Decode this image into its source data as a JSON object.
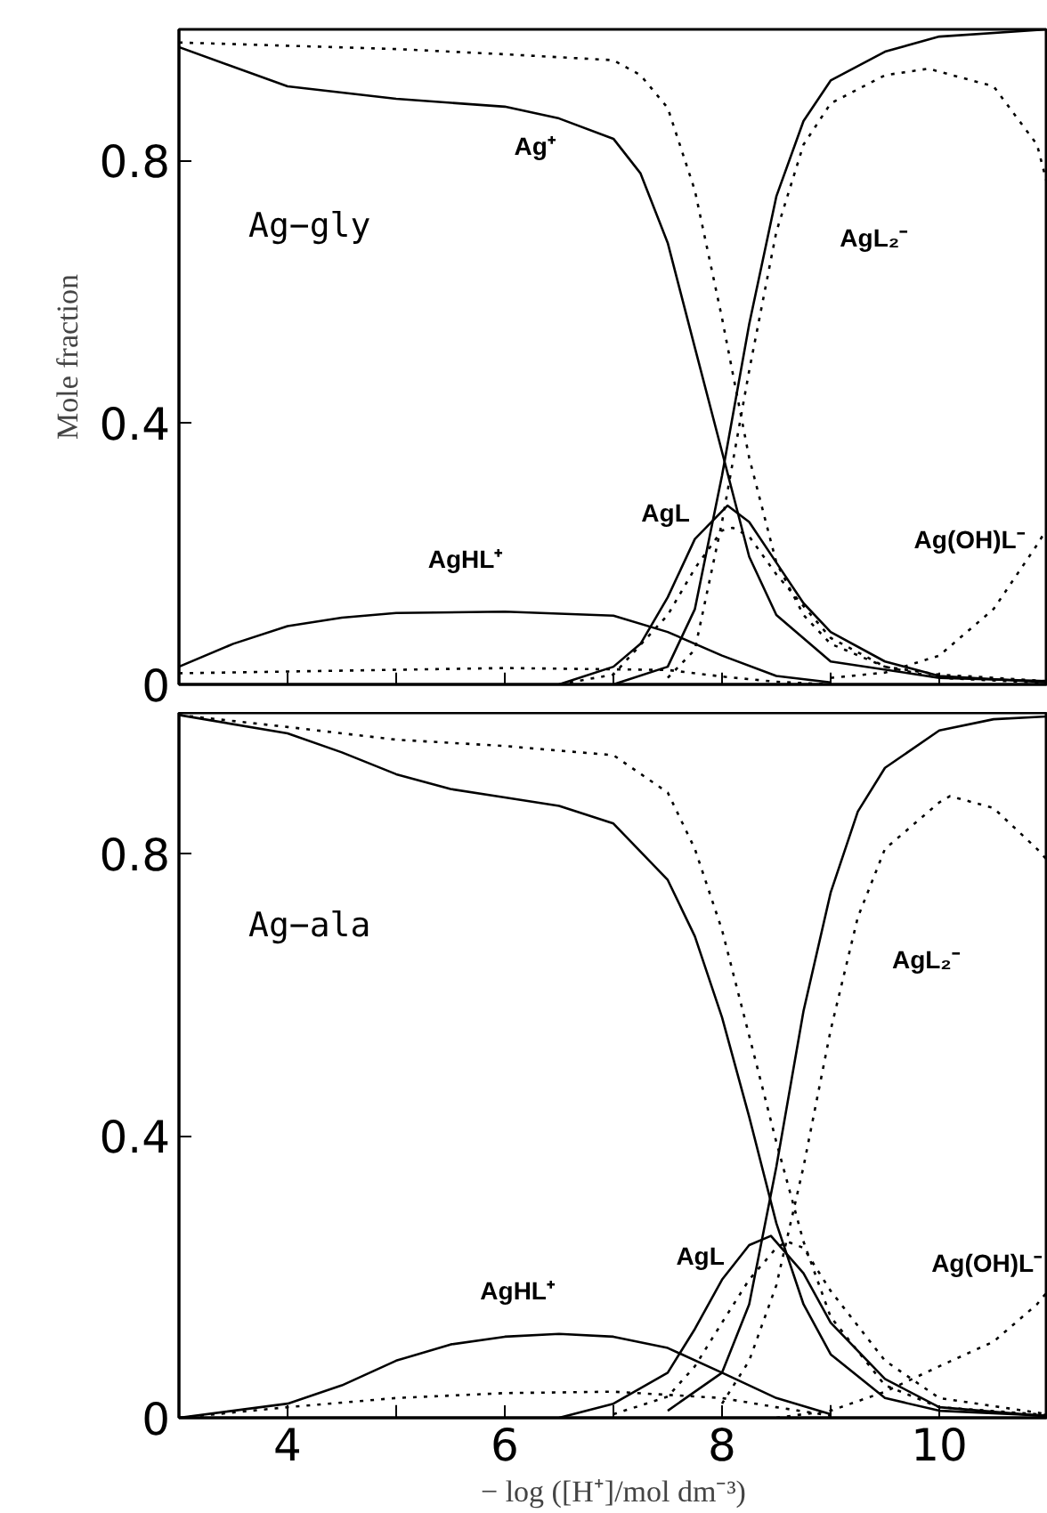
{
  "chart_data": [
    {
      "type": "line",
      "title": "Ag−gly",
      "ylabel": "Mole fraction",
      "xlim": [
        3,
        11
      ],
      "ylim": [
        0,
        1.0
      ],
      "xticks": [
        {
          "value": 4,
          "label": null
        },
        {
          "value": 5,
          "label": null
        },
        {
          "value": 6,
          "label": null
        },
        {
          "value": 7,
          "label": null
        },
        {
          "value": 8,
          "label": null
        },
        {
          "value": 9,
          "label": null
        },
        {
          "value": 10,
          "label": null
        }
      ],
      "yticks": [
        0,
        0.4,
        0.8
      ],
      "tick_labels": "y",
      "series": [
        {
          "color": "#000000",
          "line_style": "solid",
          "x": [
            3,
            4,
            5,
            6,
            6.5,
            7,
            7.25,
            7.5,
            7.75,
            8,
            8.25,
            8.5,
            9,
            10,
            11
          ],
          "values": [
            0.973,
            0.913,
            0.894,
            0.882,
            0.864,
            0.833,
            0.78,
            0.674,
            0.514,
            0.355,
            0.195,
            0.106,
            0.035,
            0.01,
            0.005
          ]
        },
        {
          "color": "#000000",
          "line_style": "dotted",
          "x": [
            3,
            5,
            6,
            7,
            7.25,
            7.5,
            7.75,
            8,
            8.25,
            8.5,
            8.75,
            9,
            9.5,
            10,
            11
          ],
          "values": [
            0.98,
            0.97,
            0.962,
            0.953,
            0.93,
            0.88,
            0.754,
            0.559,
            0.346,
            0.186,
            0.106,
            0.062,
            0.027,
            0.015,
            0.005
          ]
        },
        {
          "color": "#000000",
          "line_style": "solid",
          "x": [
            7,
            7.5,
            7.75,
            8,
            8.25,
            8.5,
            8.75,
            9,
            9.5,
            10,
            11
          ],
          "values": [
            0.0,
            0.027,
            0.115,
            0.319,
            0.55,
            0.745,
            0.86,
            0.922,
            0.966,
            0.989,
            1.0
          ]
        },
        {
          "color": "#000000",
          "line_style": "dotted",
          "x": [
            7.5,
            7.75,
            8,
            8.25,
            8.5,
            8.75,
            9,
            9.5,
            9.9,
            10.5,
            10.9,
            11
          ],
          "values": [
            0.01,
            0.053,
            0.248,
            0.479,
            0.691,
            0.824,
            0.887,
            0.93,
            0.94,
            0.913,
            0.824,
            0.76
          ]
        },
        {
          "color": "#000000",
          "line_style": "dotted",
          "x": [
            9,
            9.5,
            10,
            10.5,
            10.9,
            11
          ],
          "values": [
            0.01,
            0.018,
            0.044,
            0.115,
            0.213,
            0.24
          ]
        },
        {
          "color": "#000000",
          "line_style": "solid",
          "x": [
            6.5,
            7,
            7.25,
            7.5,
            7.75,
            8.05,
            8.25,
            8.5,
            8.75,
            9,
            9.5,
            10,
            11
          ],
          "values": [
            0.0,
            0.027,
            0.062,
            0.133,
            0.222,
            0.273,
            0.248,
            0.186,
            0.124,
            0.08,
            0.035,
            0.013,
            0.003
          ]
        },
        {
          "color": "#000000",
          "line_style": "dotted",
          "x": [
            6.5,
            7,
            7.5,
            7.75,
            8,
            8.1,
            8.25,
            8.5,
            9,
            9.5,
            10,
            11
          ],
          "values": [
            0.0,
            0.015,
            0.106,
            0.177,
            0.235,
            0.239,
            0.226,
            0.168,
            0.071,
            0.027,
            0.01,
            0.002
          ]
        },
        {
          "color": "#000000",
          "line_style": "solid",
          "x": [
            3,
            3.5,
            4,
            4.5,
            5,
            6,
            7,
            7.5,
            8,
            8.5,
            9
          ],
          "values": [
            0.027,
            0.062,
            0.089,
            0.102,
            0.109,
            0.111,
            0.105,
            0.08,
            0.044,
            0.013,
            0.003
          ]
        },
        {
          "color": "#000000",
          "line_style": "dotted",
          "x": [
            3,
            6,
            7.5,
            8,
            8.5,
            9
          ],
          "values": [
            0.017,
            0.025,
            0.022,
            0.012,
            0.004,
            0.0
          ]
        }
      ],
      "annotations": [
        "Ag⁺",
        "AgL₂⁻",
        "AgL",
        "AgHL⁺",
        "Ag(OH)L⁻"
      ]
    },
    {
      "type": "line",
      "title": "Ag−ala",
      "xlabel": "− log ([H⁺]/mol dm⁻³)",
      "xlim": [
        3,
        11
      ],
      "ylim": [
        0,
        1.0
      ],
      "xticks": [
        {
          "value": 4,
          "label": "4"
        },
        {
          "value": 5,
          "label": null
        },
        {
          "value": 6,
          "label": "6"
        },
        {
          "value": 7,
          "label": null
        },
        {
          "value": 8,
          "label": "8"
        },
        {
          "value": 9,
          "label": null
        },
        {
          "value": 10,
          "label": "10"
        }
      ],
      "yticks": [
        0,
        0.4,
        0.8
      ],
      "series": [
        {
          "color": "#000000",
          "line_style": "solid",
          "x": [
            3,
            4,
            4.5,
            5,
            5.5,
            6,
            6.5,
            7,
            7.5,
            7.75,
            8,
            8.25,
            8.5,
            8.75,
            9,
            9.5,
            10,
            11
          ],
          "values": [
            0.997,
            0.971,
            0.944,
            0.913,
            0.892,
            0.88,
            0.868,
            0.843,
            0.763,
            0.683,
            0.568,
            0.427,
            0.276,
            0.161,
            0.09,
            0.028,
            0.01,
            0.003
          ]
        },
        {
          "color": "#000000",
          "line_style": "dotted",
          "x": [
            3,
            4,
            5,
            6,
            7,
            7.5,
            7.75,
            8,
            8.25,
            8.5,
            8.75,
            9,
            9.5,
            10,
            11
          ],
          "values": [
            0.997,
            0.98,
            0.962,
            0.953,
            0.94,
            0.887,
            0.807,
            0.692,
            0.542,
            0.391,
            0.25,
            0.143,
            0.046,
            0.015,
            0.004
          ]
        },
        {
          "color": "#000000",
          "line_style": "solid",
          "x": [
            7.5,
            8,
            8.25,
            8.5,
            8.75,
            9,
            9.25,
            9.5,
            10,
            10.5,
            11
          ],
          "values": [
            0.01,
            0.064,
            0.161,
            0.356,
            0.577,
            0.745,
            0.86,
            0.922,
            0.975,
            0.991,
            0.995
          ]
        },
        {
          "color": "#000000",
          "line_style": "dotted",
          "x": [
            8,
            8.25,
            8.5,
            8.75,
            9,
            9.25,
            9.5,
            10,
            10.1,
            10.5,
            10.9,
            11
          ],
          "values": [
            0.02,
            0.081,
            0.188,
            0.356,
            0.55,
            0.71,
            0.807,
            0.873,
            0.882,
            0.865,
            0.807,
            0.79
          ]
        },
        {
          "color": "#000000",
          "line_style": "dotted",
          "x": [
            8.5,
            9,
            9.5,
            10,
            10.5,
            10.9,
            11
          ],
          "values": [
            0.0,
            0.01,
            0.037,
            0.073,
            0.108,
            0.161,
            0.18
          ]
        },
        {
          "color": "#000000",
          "line_style": "solid",
          "x": [
            6.5,
            7,
            7.5,
            7.75,
            8,
            8.25,
            8.45,
            8.75,
            9,
            9.5,
            10,
            11
          ],
          "values": [
            0.0,
            0.02,
            0.064,
            0.126,
            0.196,
            0.245,
            0.258,
            0.205,
            0.135,
            0.055,
            0.015,
            0.002
          ]
        },
        {
          "color": "#000000",
          "line_style": "dotted",
          "x": [
            7,
            7.5,
            7.75,
            8,
            8.25,
            8.5,
            8.6,
            8.75,
            9,
            9.5,
            10,
            11
          ],
          "values": [
            0.005,
            0.03,
            0.073,
            0.135,
            0.196,
            0.241,
            0.25,
            0.241,
            0.18,
            0.081,
            0.028,
            0.005
          ]
        },
        {
          "color": "#000000",
          "line_style": "solid",
          "x": [
            3,
            4,
            4.5,
            5,
            5.5,
            6,
            6.5,
            7,
            7.5,
            8,
            8.5,
            9
          ],
          "values": [
            0.0,
            0.02,
            0.046,
            0.081,
            0.104,
            0.115,
            0.119,
            0.115,
            0.099,
            0.064,
            0.028,
            0.005
          ]
        },
        {
          "color": "#000000",
          "line_style": "dotted",
          "x": [
            3,
            4,
            5,
            6,
            7,
            8,
            8.5,
            9
          ],
          "values": [
            0.0,
            0.015,
            0.028,
            0.035,
            0.037,
            0.028,
            0.015,
            0.003
          ]
        }
      ],
      "annotations": [
        "AgL₂⁻",
        "AgL",
        "AgHL⁺",
        "Ag(OH)L⁻"
      ]
    }
  ]
}
